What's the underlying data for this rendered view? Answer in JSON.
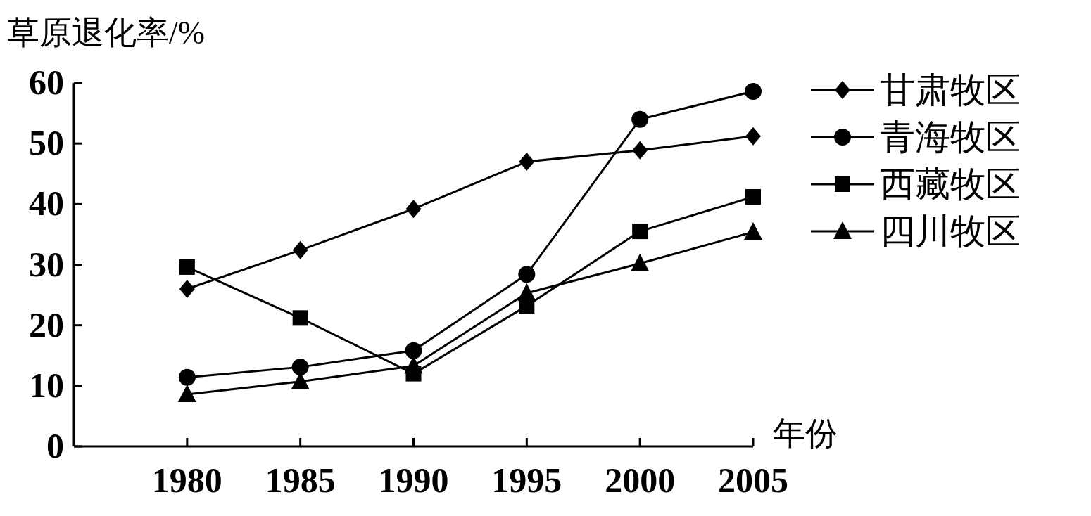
{
  "chart_data": {
    "type": "line",
    "ylabel": "草原退化率/%",
    "xlabel": "年份",
    "x": [
      1980,
      1985,
      1990,
      1995,
      2000,
      2005
    ],
    "xlim": [
      1975,
      2005
    ],
    "xticks": [
      1980,
      1985,
      1990,
      1995,
      2000,
      2005
    ],
    "ylim": [
      0,
      60
    ],
    "yticks": [
      0,
      10,
      20,
      30,
      40,
      50,
      60
    ],
    "grid": false,
    "legend": "right",
    "line_style": "solid",
    "series": [
      {
        "name": "甘肃牧区",
        "color": "#000000",
        "marker": "diamond",
        "values": [
          26.0,
          32.4,
          39.2,
          47.0,
          48.9,
          51.2
        ]
      },
      {
        "name": "青海牧区",
        "color": "#000000",
        "marker": "circle",
        "values": [
          11.4,
          13.1,
          15.8,
          28.4,
          54.0,
          58.6
        ]
      },
      {
        "name": "西藏牧区",
        "color": "#000000",
        "marker": "square",
        "values": [
          29.6,
          21.2,
          12.0,
          23.2,
          35.5,
          41.2
        ]
      },
      {
        "name": "四川牧区",
        "color": "#000000",
        "marker": "triangle",
        "values": [
          8.6,
          10.7,
          13.3,
          25.3,
          30.2,
          35.4
        ]
      }
    ]
  }
}
